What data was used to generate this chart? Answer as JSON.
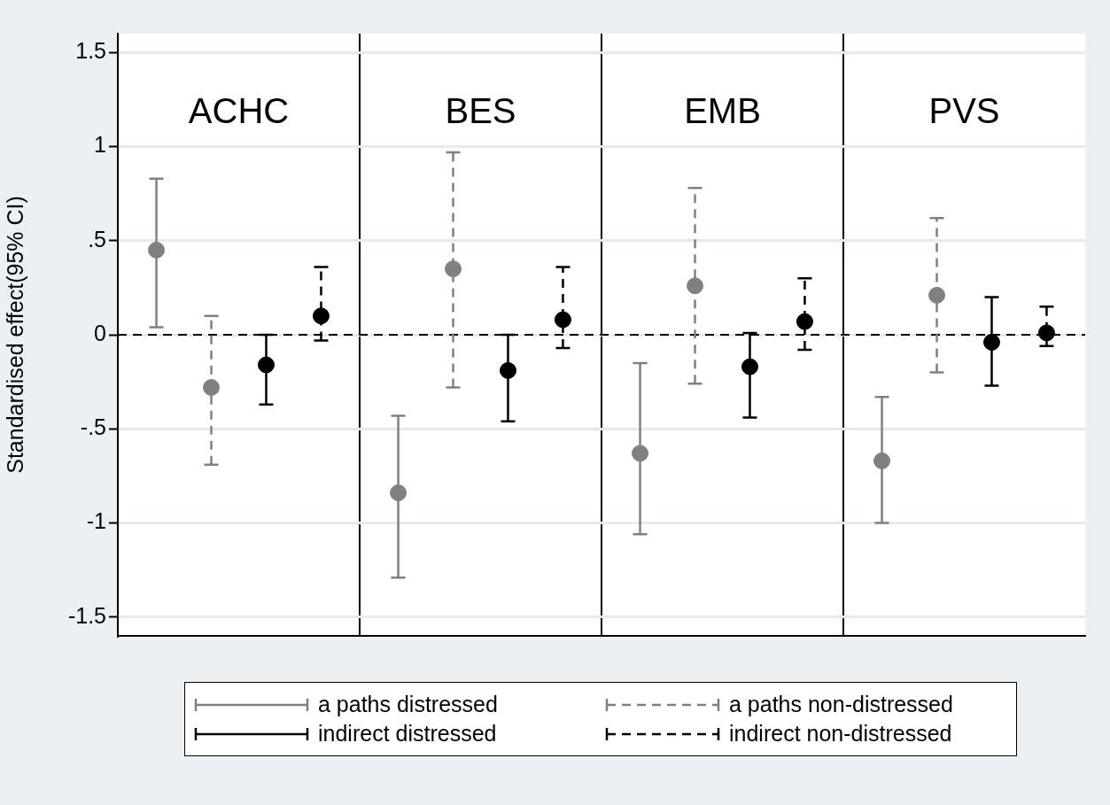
{
  "chart_data": {
    "type": "scatter",
    "ylabel": "Standardised effect(95% CI)",
    "categories": [
      "ACHC",
      "BES",
      "EMB",
      "PVS"
    ],
    "ylim": [
      -1.6,
      1.6
    ],
    "yticks": [
      1.5,
      1,
      {
        "value": 0.5,
        "label": ".5"
      },
      0,
      {
        "value": -0.5,
        "label": "-.5"
      },
      -1,
      -1.5
    ],
    "grid": true,
    "legend": "bottom",
    "marker": "circle",
    "series": [
      {
        "name": "a paths distressed",
        "color": "#808080",
        "line_style": "solid",
        "x": [
          "ACHC",
          "BES",
          "EMB",
          "PVS"
        ],
        "values": [
          0.45,
          -0.84,
          -0.63,
          -0.67
        ],
        "errors": [
          [
            0.04,
            0.83
          ],
          [
            -1.29,
            -0.43
          ],
          [
            -1.06,
            -0.15
          ],
          [
            -1.0,
            -0.33
          ]
        ]
      },
      {
        "name": "a paths non-distressed",
        "color": "#808080",
        "line_style": "dashed",
        "x": [
          "ACHC",
          "BES",
          "EMB",
          "PVS"
        ],
        "values": [
          -0.28,
          0.35,
          0.26,
          0.21
        ],
        "errors": [
          [
            -0.69,
            0.1
          ],
          [
            -0.28,
            0.97
          ],
          [
            -0.26,
            0.78
          ],
          [
            -0.2,
            0.62
          ]
        ]
      },
      {
        "name": "indirect distressed",
        "color": "#000000",
        "line_style": "solid",
        "x": [
          "ACHC",
          "BES",
          "EMB",
          "PVS"
        ],
        "values": [
          -0.16,
          -0.19,
          -0.17,
          -0.04
        ],
        "errors": [
          [
            -0.37,
            0.0
          ],
          [
            -0.46,
            0.0
          ],
          [
            -0.44,
            0.01
          ],
          [
            -0.27,
            0.2
          ]
        ]
      },
      {
        "name": "indirect non-distressed",
        "color": "#000000",
        "line_style": "dashed",
        "x": [
          "ACHC",
          "BES",
          "EMB",
          "PVS"
        ],
        "values": [
          0.1,
          0.08,
          0.07,
          0.01
        ],
        "errors": [
          [
            -0.03,
            0.36
          ],
          [
            -0.07,
            0.36
          ],
          [
            -0.08,
            0.3
          ],
          [
            -0.06,
            0.15
          ]
        ]
      }
    ],
    "ref_lines": [
      {
        "axis": "y",
        "value": 0,
        "color": "#000000",
        "line_style": "dashed"
      }
    ]
  }
}
